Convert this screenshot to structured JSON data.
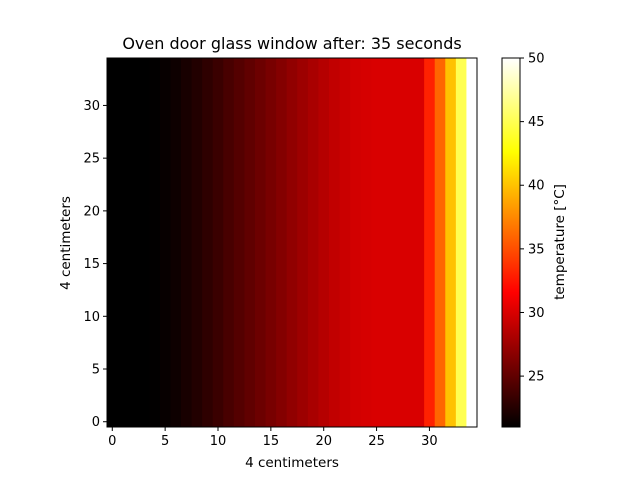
{
  "chart_data": {
    "type": "heatmap",
    "title": "Oven door glass window after: 35 seconds",
    "xlabel": "4 centimeters",
    "ylabel": "4 centimeters",
    "colorbar_label": "temperature [°C]",
    "colormap": "hot",
    "xlim": [
      -0.5,
      34.5
    ],
    "ylim": [
      -0.5,
      34.5
    ],
    "x_ticks": [
      0,
      5,
      10,
      15,
      20,
      25,
      30
    ],
    "y_ticks": [
      0,
      5,
      10,
      15,
      20,
      25,
      30
    ],
    "x_tick_labels": [
      "0",
      "5",
      "10",
      "15",
      "20",
      "25",
      "30"
    ],
    "y_tick_labels": [
      "0",
      "5",
      "10",
      "15",
      "20",
      "25",
      "30"
    ],
    "color_range": [
      21,
      50
    ],
    "colorbar_ticks": [
      25,
      30,
      35,
      40,
      45,
      50
    ],
    "colorbar_tick_labels": [
      "25",
      "30",
      "35",
      "40",
      "45",
      "50"
    ],
    "column_temperatures": [
      21.0,
      21.0,
      21.0,
      21.0,
      21.1,
      21.3,
      21.6,
      22.0,
      22.4,
      22.9,
      23.4,
      24.0,
      24.5,
      25.0,
      25.5,
      26.0,
      26.5,
      27.0,
      27.5,
      28.0,
      28.5,
      29.0,
      29.4,
      29.7,
      29.9,
      30.0,
      30.0,
      30.0,
      30.0,
      30.0,
      33.0,
      36.0,
      40.0,
      45.0,
      50.0
    ],
    "rows": 35
  }
}
